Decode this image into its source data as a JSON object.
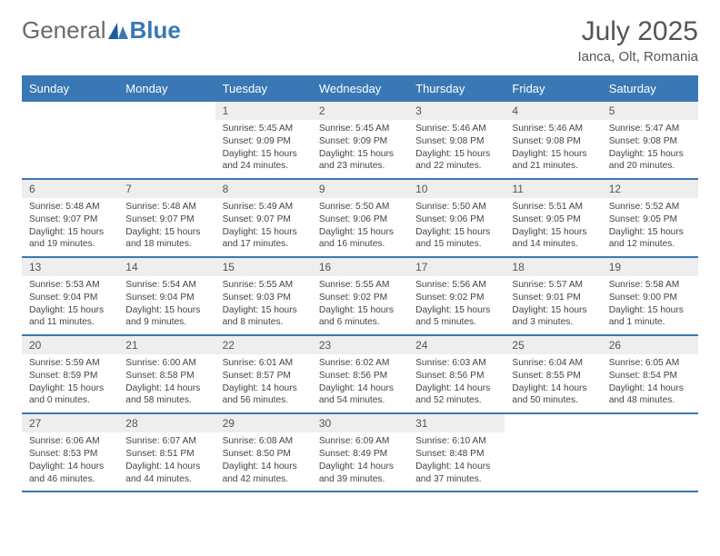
{
  "logo": {
    "text1": "General",
    "text2": "Blue"
  },
  "title": "July 2025",
  "subtitle": "Ianca, Olt, Romania",
  "colors": {
    "accent": "#3a78b5",
    "header_bg": "#3a78b5",
    "daynum_bg": "#eeeeee",
    "text": "#444444",
    "title": "#555555"
  },
  "weekdays": [
    "Sunday",
    "Monday",
    "Tuesday",
    "Wednesday",
    "Thursday",
    "Friday",
    "Saturday"
  ],
  "weeks": [
    [
      null,
      null,
      {
        "d": "1",
        "sr": "5:45 AM",
        "ss": "9:09 PM",
        "dl": "15 hours and 24 minutes."
      },
      {
        "d": "2",
        "sr": "5:45 AM",
        "ss": "9:09 PM",
        "dl": "15 hours and 23 minutes."
      },
      {
        "d": "3",
        "sr": "5:46 AM",
        "ss": "9:08 PM",
        "dl": "15 hours and 22 minutes."
      },
      {
        "d": "4",
        "sr": "5:46 AM",
        "ss": "9:08 PM",
        "dl": "15 hours and 21 minutes."
      },
      {
        "d": "5",
        "sr": "5:47 AM",
        "ss": "9:08 PM",
        "dl": "15 hours and 20 minutes."
      }
    ],
    [
      {
        "d": "6",
        "sr": "5:48 AM",
        "ss": "9:07 PM",
        "dl": "15 hours and 19 minutes."
      },
      {
        "d": "7",
        "sr": "5:48 AM",
        "ss": "9:07 PM",
        "dl": "15 hours and 18 minutes."
      },
      {
        "d": "8",
        "sr": "5:49 AM",
        "ss": "9:07 PM",
        "dl": "15 hours and 17 minutes."
      },
      {
        "d": "9",
        "sr": "5:50 AM",
        "ss": "9:06 PM",
        "dl": "15 hours and 16 minutes."
      },
      {
        "d": "10",
        "sr": "5:50 AM",
        "ss": "9:06 PM",
        "dl": "15 hours and 15 minutes."
      },
      {
        "d": "11",
        "sr": "5:51 AM",
        "ss": "9:05 PM",
        "dl": "15 hours and 14 minutes."
      },
      {
        "d": "12",
        "sr": "5:52 AM",
        "ss": "9:05 PM",
        "dl": "15 hours and 12 minutes."
      }
    ],
    [
      {
        "d": "13",
        "sr": "5:53 AM",
        "ss": "9:04 PM",
        "dl": "15 hours and 11 minutes."
      },
      {
        "d": "14",
        "sr": "5:54 AM",
        "ss": "9:04 PM",
        "dl": "15 hours and 9 minutes."
      },
      {
        "d": "15",
        "sr": "5:55 AM",
        "ss": "9:03 PM",
        "dl": "15 hours and 8 minutes."
      },
      {
        "d": "16",
        "sr": "5:55 AM",
        "ss": "9:02 PM",
        "dl": "15 hours and 6 minutes."
      },
      {
        "d": "17",
        "sr": "5:56 AM",
        "ss": "9:02 PM",
        "dl": "15 hours and 5 minutes."
      },
      {
        "d": "18",
        "sr": "5:57 AM",
        "ss": "9:01 PM",
        "dl": "15 hours and 3 minutes."
      },
      {
        "d": "19",
        "sr": "5:58 AM",
        "ss": "9:00 PM",
        "dl": "15 hours and 1 minute."
      }
    ],
    [
      {
        "d": "20",
        "sr": "5:59 AM",
        "ss": "8:59 PM",
        "dl": "15 hours and 0 minutes."
      },
      {
        "d": "21",
        "sr": "6:00 AM",
        "ss": "8:58 PM",
        "dl": "14 hours and 58 minutes."
      },
      {
        "d": "22",
        "sr": "6:01 AM",
        "ss": "8:57 PM",
        "dl": "14 hours and 56 minutes."
      },
      {
        "d": "23",
        "sr": "6:02 AM",
        "ss": "8:56 PM",
        "dl": "14 hours and 54 minutes."
      },
      {
        "d": "24",
        "sr": "6:03 AM",
        "ss": "8:56 PM",
        "dl": "14 hours and 52 minutes."
      },
      {
        "d": "25",
        "sr": "6:04 AM",
        "ss": "8:55 PM",
        "dl": "14 hours and 50 minutes."
      },
      {
        "d": "26",
        "sr": "6:05 AM",
        "ss": "8:54 PM",
        "dl": "14 hours and 48 minutes."
      }
    ],
    [
      {
        "d": "27",
        "sr": "6:06 AM",
        "ss": "8:53 PM",
        "dl": "14 hours and 46 minutes."
      },
      {
        "d": "28",
        "sr": "6:07 AM",
        "ss": "8:51 PM",
        "dl": "14 hours and 44 minutes."
      },
      {
        "d": "29",
        "sr": "6:08 AM",
        "ss": "8:50 PM",
        "dl": "14 hours and 42 minutes."
      },
      {
        "d": "30",
        "sr": "6:09 AM",
        "ss": "8:49 PM",
        "dl": "14 hours and 39 minutes."
      },
      {
        "d": "31",
        "sr": "6:10 AM",
        "ss": "8:48 PM",
        "dl": "14 hours and 37 minutes."
      },
      null,
      null
    ]
  ],
  "labels": {
    "sunrise": "Sunrise:",
    "sunset": "Sunset:",
    "daylight": "Daylight:"
  }
}
